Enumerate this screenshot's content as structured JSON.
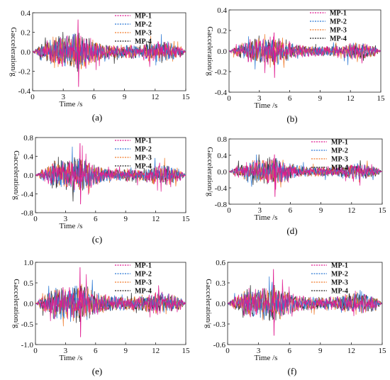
{
  "chart_data": [
    {
      "panel": "(a)",
      "type": "line",
      "xlabel": "Time /s",
      "ylabel": "Gacceleration/g",
      "xlim": [
        0,
        15
      ],
      "ylim": [
        -0.4,
        0.4
      ],
      "xticks": [
        0,
        3,
        6,
        9,
        12,
        15
      ],
      "yticks": [
        0.4,
        0.2,
        0.0,
        -0.2,
        -0.4
      ],
      "ytick_labels": [
        "0.4",
        "0.2",
        "0.0",
        "-0.2",
        "-0.4"
      ],
      "peak_pos": 0.33,
      "peak_neg": -0.36,
      "legend_loc": "top-right",
      "series": [
        {
          "name": "MP-1",
          "color": "#e0188f"
        },
        {
          "name": "MP-2",
          "color": "#2b78d4"
        },
        {
          "name": "MP-3",
          "color": "#f07a2a"
        },
        {
          "name": "MP-4",
          "color": "#222222"
        }
      ]
    },
    {
      "panel": "(b)",
      "type": "line",
      "xlabel": "Time /s",
      "ylabel": "Gacceleration/g",
      "xlim": [
        0,
        15
      ],
      "ylim": [
        -0.4,
        0.4
      ],
      "xticks": [
        0,
        3,
        6,
        9,
        12,
        15
      ],
      "yticks": [
        0.4,
        0.2,
        0.0,
        -0.2,
        -0.4
      ],
      "ytick_labels": [
        "0.4",
        "0.2",
        "0.0",
        "-0.2",
        "-0.4"
      ],
      "peak_pos": 0.18,
      "peak_neg": -0.26,
      "legend_loc": "top-right",
      "series": [
        {
          "name": "MP-1",
          "color": "#e0188f"
        },
        {
          "name": "MP-2",
          "color": "#2b78d4"
        },
        {
          "name": "MP-3",
          "color": "#f07a2a"
        },
        {
          "name": "MP-4",
          "color": "#222222"
        }
      ]
    },
    {
      "panel": "(c)",
      "type": "line",
      "xlabel": "Time /s",
      "ylabel": "Gacceleration/g",
      "xlim": [
        0,
        15
      ],
      "ylim": [
        -0.8,
        0.8
      ],
      "xticks": [
        0,
        3,
        6,
        9,
        12,
        15
      ],
      "yticks": [
        0.8,
        0.4,
        0.0,
        -0.4,
        -0.8
      ],
      "ytick_labels": [
        "0.8",
        "0.4",
        "0.0",
        "-0.4",
        "-0.8"
      ],
      "peak_pos": 0.68,
      "peak_neg": -0.62,
      "legend_loc": "top-right",
      "series": [
        {
          "name": "MP-1",
          "color": "#e0188f"
        },
        {
          "name": "MP-2",
          "color": "#2b78d4"
        },
        {
          "name": "MP-3",
          "color": "#f07a2a"
        },
        {
          "name": "MP-4",
          "color": "#222222"
        }
      ]
    },
    {
      "panel": "(d)",
      "type": "line",
      "xlabel": "Time /s",
      "ylabel": "Gacceleration/g",
      "xlim": [
        0,
        15
      ],
      "ylim": [
        -0.8,
        0.8
      ],
      "xticks": [
        0,
        3,
        6,
        9,
        12,
        15
      ],
      "yticks": [
        0.8,
        0.4,
        0.0,
        -0.4,
        -0.8
      ],
      "ytick_labels": [
        "0.8",
        "0.4",
        "0.0",
        "-0.4",
        "-0.8"
      ],
      "peak_pos": 0.42,
      "peak_neg": -0.62,
      "legend_loc": "top-right",
      "series": [
        {
          "name": "MP-1",
          "color": "#e0188f"
        },
        {
          "name": "MP-2",
          "color": "#2b78d4"
        },
        {
          "name": "MP-3",
          "color": "#f07a2a"
        },
        {
          "name": "MP-4",
          "color": "#222222"
        }
      ]
    },
    {
      "panel": "(e)",
      "type": "line",
      "xlabel": "Time /s",
      "ylabel": "Gacceleration/g",
      "xlim": [
        0,
        15
      ],
      "ylim": [
        -1.0,
        1.0
      ],
      "xticks": [
        0,
        3,
        6,
        9,
        12,
        15
      ],
      "yticks": [
        1.0,
        0.5,
        0.0,
        -0.5,
        -1.0
      ],
      "ytick_labels": [
        "1.0",
        "0.5",
        "0.0",
        "-0.5",
        "-1.0"
      ],
      "peak_pos": 0.88,
      "peak_neg": -0.82,
      "legend_loc": "top-right",
      "series": [
        {
          "name": "MP-1",
          "color": "#e0188f"
        },
        {
          "name": "MP-2",
          "color": "#2b78d4"
        },
        {
          "name": "MP-3",
          "color": "#f07a2a"
        },
        {
          "name": "MP-4",
          "color": "#222222"
        }
      ]
    },
    {
      "panel": "(f)",
      "type": "line",
      "xlabel": "Time /s",
      "ylabel": "Gacceleration/g",
      "xlim": [
        0,
        15
      ],
      "ylim": [
        -0.6,
        0.6
      ],
      "xticks": [
        0,
        3,
        6,
        9,
        12,
        15
      ],
      "yticks": [
        0.6,
        0.3,
        0.0,
        -0.3,
        -0.6
      ],
      "ytick_labels": [
        "0.6",
        "0.3",
        "0.0",
        "-0.3",
        "-0.6"
      ],
      "peak_pos": 0.5,
      "peak_neg": -0.47,
      "legend_loc": "top-right",
      "series": [
        {
          "name": "MP-1",
          "color": "#e0188f"
        },
        {
          "name": "MP-2",
          "color": "#2b78d4"
        },
        {
          "name": "MP-3",
          "color": "#f07a2a"
        },
        {
          "name": "MP-4",
          "color": "#222222"
        }
      ]
    }
  ]
}
